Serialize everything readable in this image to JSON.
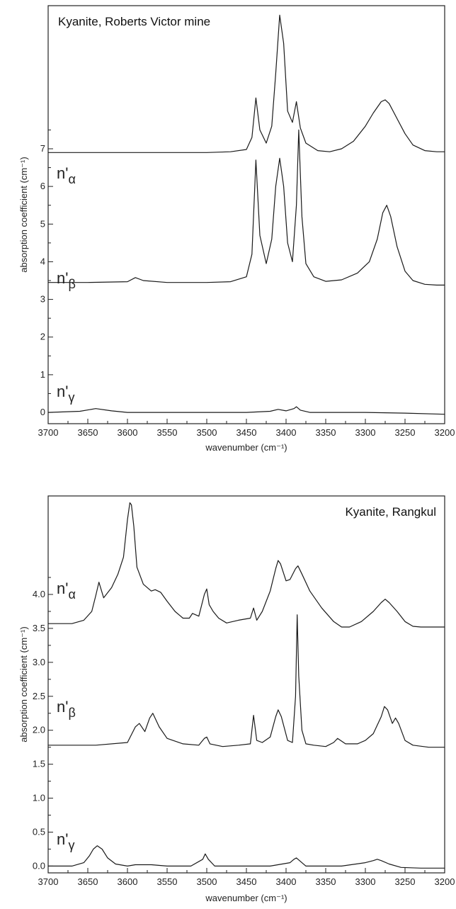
{
  "chart_data": [
    {
      "type": "line",
      "title": "Kyanite, Roberts Victor mine",
      "xlabel": "wavenumber (cm⁻¹)",
      "ylabel": "absorption coefficient (cm⁻¹)",
      "xlim": [
        3700,
        3200
      ],
      "ylim": [
        -0.3,
        10.8
      ],
      "x_ticks": [
        3700,
        3650,
        3600,
        3550,
        3500,
        3450,
        3400,
        3350,
        3300,
        3250,
        3200
      ],
      "x_tick_labels": [
        "3700",
        "3650",
        "3600",
        "3550",
        "3500",
        "3450",
        "3400",
        "3350",
        "3300",
        "3250",
        "3200"
      ],
      "y_ticks": [
        0,
        1,
        2,
        3,
        4,
        5,
        6,
        7
      ],
      "y_tick_labels": [
        "0",
        "1",
        "2",
        "3",
        "4",
        "5",
        "6",
        "7"
      ],
      "grid": false,
      "series": [
        {
          "name": "n'α",
          "label_base": "n'",
          "label_sub": "α",
          "x": [
            3700,
            3650,
            3600,
            3550,
            3500,
            3470,
            3450,
            3443,
            3438,
            3433,
            3425,
            3418,
            3413,
            3408,
            3403,
            3398,
            3392,
            3387,
            3382,
            3375,
            3360,
            3345,
            3330,
            3315,
            3300,
            3290,
            3280,
            3275,
            3270,
            3260,
            3250,
            3240,
            3225,
            3210,
            3200
          ],
          "y": [
            6.9,
            6.9,
            6.9,
            6.9,
            6.9,
            6.92,
            6.98,
            7.3,
            8.35,
            7.5,
            7.15,
            7.6,
            9.0,
            10.55,
            9.8,
            8.0,
            7.7,
            8.25,
            7.55,
            7.15,
            6.95,
            6.92,
            7.0,
            7.2,
            7.6,
            7.95,
            8.25,
            8.3,
            8.2,
            7.8,
            7.4,
            7.1,
            6.95,
            6.92,
            6.92
          ]
        },
        {
          "name": "n'β",
          "label_base": "n'",
          "label_sub": "β",
          "x": [
            3700,
            3650,
            3600,
            3590,
            3580,
            3550,
            3500,
            3470,
            3450,
            3443,
            3438,
            3433,
            3425,
            3418,
            3413,
            3408,
            3403,
            3398,
            3392,
            3387,
            3384,
            3380,
            3375,
            3365,
            3350,
            3330,
            3310,
            3295,
            3285,
            3278,
            3273,
            3268,
            3260,
            3250,
            3240,
            3225,
            3210,
            3200
          ],
          "y": [
            3.45,
            3.45,
            3.47,
            3.58,
            3.5,
            3.45,
            3.45,
            3.47,
            3.6,
            4.2,
            6.7,
            4.7,
            3.95,
            4.6,
            6.0,
            6.75,
            6.0,
            4.5,
            4.0,
            5.5,
            7.5,
            5.2,
            3.95,
            3.6,
            3.48,
            3.52,
            3.7,
            4.0,
            4.6,
            5.3,
            5.5,
            5.2,
            4.4,
            3.75,
            3.5,
            3.4,
            3.38,
            3.38
          ]
        },
        {
          "name": "n'γ",
          "label_base": "n'",
          "label_sub": "γ",
          "x": [
            3700,
            3660,
            3640,
            3620,
            3600,
            3550,
            3500,
            3450,
            3420,
            3410,
            3400,
            3390,
            3387,
            3382,
            3370,
            3330,
            3300,
            3250,
            3200
          ],
          "y": [
            0.0,
            0.03,
            0.1,
            0.04,
            0.0,
            0.0,
            0.0,
            0.0,
            0.03,
            0.08,
            0.04,
            0.1,
            0.15,
            0.06,
            0.0,
            0.0,
            0.0,
            -0.02,
            -0.05
          ]
        }
      ]
    },
    {
      "type": "line",
      "title": "Kyanite, Rangkul",
      "xlabel": "wavenumber (cm⁻¹)",
      "ylabel": "absorption coefficient (cm⁻¹)",
      "xlim": [
        3700,
        3200
      ],
      "ylim": [
        -0.1,
        5.45
      ],
      "x_ticks": [
        3700,
        3650,
        3600,
        3550,
        3500,
        3450,
        3400,
        3350,
        3300,
        3250,
        3200
      ],
      "x_tick_labels": [
        "3700",
        "3650",
        "3600",
        "3550",
        "3500",
        "3450",
        "3400",
        "3350",
        "3300",
        "3250",
        "3200"
      ],
      "y_ticks": [
        0.0,
        0.5,
        1.0,
        1.5,
        2.0,
        2.5,
        3.0,
        3.5,
        4.0
      ],
      "y_tick_labels": [
        "0.0",
        "0.5",
        "1.0",
        "1.5",
        "2.0",
        "2.5",
        "3.0",
        "3.5",
        "4.0"
      ],
      "grid": false,
      "series": [
        {
          "name": "n'α",
          "label_base": "n'",
          "label_sub": "α",
          "x": [
            3700,
            3670,
            3655,
            3645,
            3640,
            3636,
            3630,
            3620,
            3612,
            3605,
            3600,
            3597,
            3595,
            3592,
            3588,
            3580,
            3570,
            3565,
            3558,
            3550,
            3540,
            3530,
            3522,
            3518,
            3510,
            3503,
            3500,
            3497,
            3492,
            3485,
            3475,
            3460,
            3445,
            3441,
            3437,
            3430,
            3420,
            3413,
            3410,
            3407,
            3400,
            3395,
            3388,
            3385,
            3380,
            3370,
            3355,
            3340,
            3330,
            3320,
            3305,
            3290,
            3280,
            3275,
            3270,
            3260,
            3250,
            3240,
            3230,
            3210,
            3200
          ],
          "y": [
            3.57,
            3.57,
            3.62,
            3.75,
            3.98,
            4.18,
            3.95,
            4.1,
            4.3,
            4.55,
            5.1,
            5.35,
            5.32,
            5.0,
            4.4,
            4.15,
            4.05,
            4.07,
            4.03,
            3.9,
            3.75,
            3.65,
            3.65,
            3.72,
            3.68,
            4.0,
            4.08,
            3.85,
            3.75,
            3.65,
            3.58,
            3.62,
            3.65,
            3.8,
            3.62,
            3.75,
            4.05,
            4.38,
            4.5,
            4.45,
            4.2,
            4.22,
            4.38,
            4.42,
            4.3,
            4.05,
            3.8,
            3.6,
            3.52,
            3.52,
            3.6,
            3.75,
            3.88,
            3.93,
            3.88,
            3.75,
            3.6,
            3.53,
            3.52,
            3.52,
            3.52
          ]
        },
        {
          "name": "n'β",
          "label_base": "n'",
          "label_sub": "β",
          "x": [
            3700,
            3640,
            3600,
            3590,
            3585,
            3578,
            3572,
            3568,
            3560,
            3550,
            3530,
            3510,
            3503,
            3500,
            3496,
            3480,
            3460,
            3445,
            3441,
            3437,
            3430,
            3420,
            3413,
            3410,
            3406,
            3398,
            3392,
            3388,
            3386,
            3384,
            3380,
            3375,
            3365,
            3350,
            3340,
            3335,
            3325,
            3310,
            3300,
            3290,
            3280,
            3276,
            3272,
            3266,
            3262,
            3258,
            3250,
            3240,
            3220,
            3200
          ],
          "y": [
            1.78,
            1.78,
            1.82,
            2.05,
            2.1,
            1.98,
            2.18,
            2.25,
            2.05,
            1.88,
            1.8,
            1.78,
            1.88,
            1.9,
            1.8,
            1.76,
            1.78,
            1.8,
            2.22,
            1.85,
            1.82,
            1.9,
            2.2,
            2.3,
            2.2,
            1.85,
            1.82,
            2.5,
            3.7,
            2.8,
            2.0,
            1.8,
            1.78,
            1.76,
            1.82,
            1.88,
            1.8,
            1.8,
            1.85,
            1.95,
            2.2,
            2.35,
            2.3,
            2.1,
            2.18,
            2.1,
            1.85,
            1.78,
            1.75,
            1.75
          ]
        },
        {
          "name": "n'γ",
          "label_base": "n'",
          "label_sub": "γ",
          "x": [
            3700,
            3670,
            3655,
            3648,
            3643,
            3638,
            3632,
            3625,
            3615,
            3600,
            3590,
            3570,
            3550,
            3520,
            3505,
            3502,
            3498,
            3490,
            3450,
            3420,
            3395,
            3390,
            3387,
            3383,
            3375,
            3330,
            3300,
            3290,
            3285,
            3280,
            3270,
            3255,
            3230,
            3200
          ],
          "y": [
            0.0,
            0.0,
            0.05,
            0.15,
            0.25,
            0.3,
            0.25,
            0.12,
            0.03,
            0.0,
            0.02,
            0.02,
            0.0,
            0.0,
            0.1,
            0.18,
            0.1,
            0.0,
            0.0,
            0.0,
            0.05,
            0.1,
            0.12,
            0.08,
            0.0,
            0.0,
            0.05,
            0.08,
            0.1,
            0.08,
            0.03,
            -0.02,
            -0.03,
            -0.03
          ]
        }
      ]
    }
  ]
}
